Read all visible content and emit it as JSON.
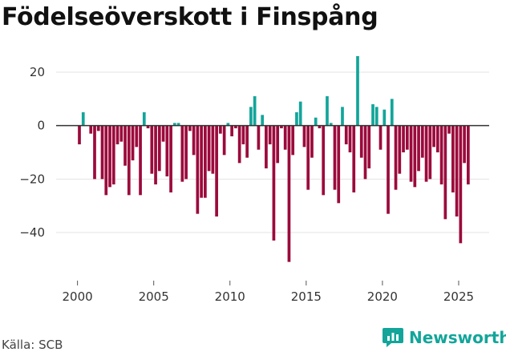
{
  "chart_data": {
    "type": "bar",
    "title": "Födelseöverskott i Finspång",
    "xlabel": "",
    "ylabel": "",
    "xlim": [
      1998.6,
      2027.0
    ],
    "ylim": [
      -58,
      29
    ],
    "yticks": [
      20,
      0,
      -20,
      -40
    ],
    "xticks": [
      2000,
      2005,
      2010,
      2015,
      2020,
      2025
    ],
    "frequency": "quarterly",
    "start": 2000.0,
    "positive_color": "#13a59a",
    "negative_color": "#9b0a3c",
    "values": [
      -7,
      5,
      0,
      -3,
      -20,
      -2,
      -20,
      -26,
      -23,
      -22,
      -7,
      -6,
      -15,
      -26,
      -13,
      -8,
      -26,
      5,
      -1,
      -18,
      -22,
      -17,
      -6,
      -19,
      -25,
      1,
      1,
      -21,
      -20,
      -2,
      -11,
      -33,
      -27,
      -27,
      -17,
      -18,
      -34,
      -3,
      -11,
      1,
      -4,
      -1,
      -14,
      -7,
      -12,
      7,
      11,
      -9,
      4,
      -16,
      -7,
      -43,
      -14,
      -1,
      -9,
      -51,
      -11,
      5,
      9,
      -8,
      -24,
      -12,
      3,
      -1,
      -26,
      11,
      1,
      -24,
      -29,
      7,
      -7,
      -10,
      -25,
      26,
      -12,
      -20,
      -16,
      8,
      7,
      -9,
      6,
      -33,
      10,
      -24,
      -18,
      -10,
      -9,
      -21,
      -23,
      -17,
      -12,
      -21,
      -20,
      -8,
      -10,
      -22,
      -35,
      -3,
      -25,
      -34,
      -44,
      -14,
      -22
    ]
  },
  "source": "Källa: SCB",
  "brand": "Newsworthy"
}
